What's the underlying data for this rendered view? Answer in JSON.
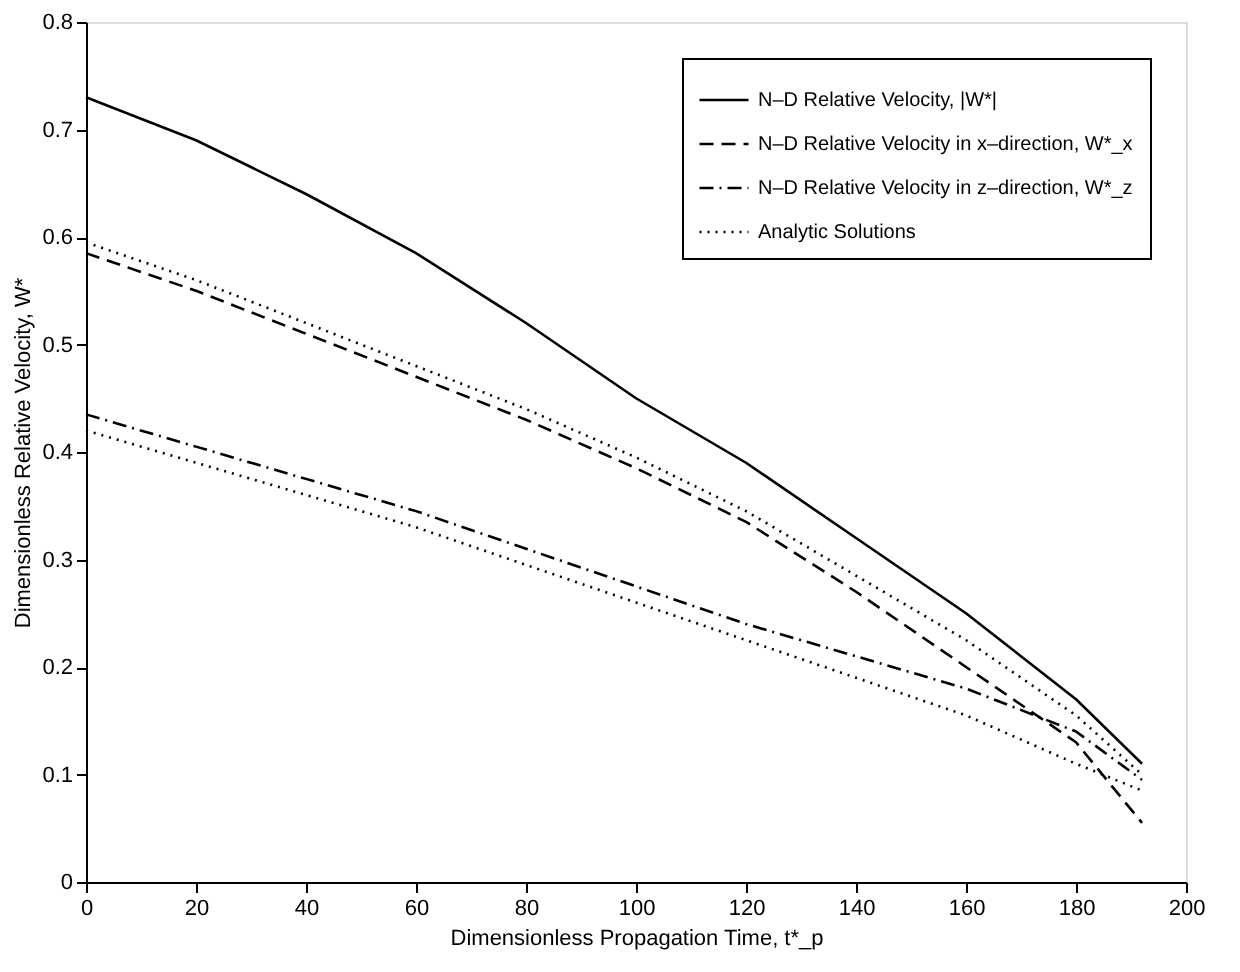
{
  "chart_data": {
    "type": "line",
    "xlabel": "Dimensionless Propagation Time, t*_p",
    "ylabel": "Dimensionless Relative Velocity, W*",
    "xlim": [
      0,
      200
    ],
    "xticks": [
      0,
      20,
      40,
      60,
      80,
      100,
      120,
      140,
      160,
      180,
      200
    ],
    "ylim": [
      0,
      0.8
    ],
    "yticks": [
      0,
      0.1,
      0.2,
      0.3,
      0.4,
      0.5,
      0.6,
      0.7,
      0.8
    ],
    "grid": false,
    "legend": "top right",
    "marker": "none",
    "series": [
      {
        "name": "N–D Relative Velocity, |W*|",
        "color": "#000000",
        "line_style": "solid",
        "x": [
          0,
          20,
          40,
          60,
          80,
          100,
          120,
          140,
          160,
          180,
          192
        ],
        "values": [
          0.73,
          0.69,
          0.64,
          0.585,
          0.52,
          0.45,
          0.39,
          0.32,
          0.25,
          0.17,
          0.11
        ]
      },
      {
        "name": "N–D Relative Velocity in x–direction, W*_x",
        "color": "#000000",
        "line_style": "dashed",
        "x": [
          0,
          20,
          40,
          60,
          80,
          100,
          120,
          140,
          160,
          180,
          192
        ],
        "values": [
          0.585,
          0.55,
          0.51,
          0.47,
          0.43,
          0.385,
          0.335,
          0.27,
          0.2,
          0.13,
          0.055
        ]
      },
      {
        "name": "N–D Relative Velocity in z–direction, W*_z",
        "color": "#000000",
        "line_style": "dashdot",
        "x": [
          0,
          20,
          40,
          60,
          80,
          100,
          120,
          140,
          160,
          180,
          192
        ],
        "values": [
          0.435,
          0.405,
          0.375,
          0.345,
          0.31,
          0.275,
          0.24,
          0.21,
          0.18,
          0.14,
          0.095
        ]
      },
      {
        "name": "Analytic Solutions",
        "color": "#000000",
        "line_style": "dotted",
        "x": [
          0,
          20,
          40,
          60,
          80,
          100,
          120,
          140,
          160,
          180,
          192
        ],
        "values": [
          0.595,
          0.56,
          0.52,
          0.48,
          0.44,
          0.395,
          0.345,
          0.285,
          0.225,
          0.155,
          0.1
        ]
      },
      {
        "color": "#000000",
        "line_style": "dotted",
        "x": [
          0,
          20,
          40,
          60,
          80,
          100,
          120,
          140,
          160,
          180,
          192
        ],
        "values": [
          0.42,
          0.39,
          0.36,
          0.33,
          0.295,
          0.26,
          0.225,
          0.19,
          0.155,
          0.11,
          0.085
        ]
      }
    ]
  }
}
